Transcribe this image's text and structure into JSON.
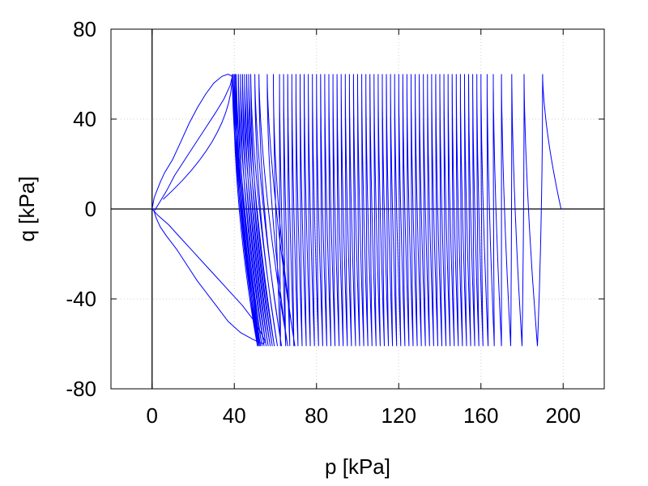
{
  "chart_data": {
    "type": "line",
    "title": "",
    "xlabel": "p [kPa]",
    "ylabel": "q [kPa]",
    "xlim": [
      -20,
      220
    ],
    "ylim": [
      -80,
      80
    ],
    "xticks": [
      0,
      40,
      80,
      120,
      160,
      200
    ],
    "yticks": [
      80,
      40,
      0,
      -40,
      -80
    ],
    "xtick_labels": [
      "0",
      "40",
      "80",
      "120",
      "160",
      "200"
    ],
    "ytick_labels": [
      "80",
      "40",
      "0",
      "-40",
      "-80"
    ],
    "grid": true,
    "zero_lines": true,
    "legend": "none",
    "series_color": "#0000ff",
    "series": [
      {
        "x": [
          0,
          1,
          4,
          6,
          10,
          14,
          18,
          22,
          26,
          30,
          34,
          37,
          39,
          38,
          35,
          31,
          26,
          21,
          16,
          11,
          7,
          3,
          1,
          2,
          4,
          7,
          12,
          17,
          22,
          27,
          32,
          37,
          43,
          49,
          54,
          55,
          53,
          49,
          44,
          38,
          32,
          26,
          20,
          14,
          8,
          3,
          1,
          0
        ],
        "y": [
          0,
          5,
          12,
          16,
          22,
          30,
          38,
          45,
          51,
          56,
          59,
          60,
          59,
          55,
          49,
          43,
          36,
          29,
          22,
          15,
          8,
          2,
          -1,
          -4,
          -8,
          -12,
          -18,
          -25,
          -32,
          -38,
          -44,
          -50,
          -55,
          -58,
          -60,
          -59,
          -55,
          -49,
          -43,
          -37,
          -31,
          -25,
          -19,
          -13,
          -7,
          -3,
          -1,
          0
        ]
      }
    ],
    "cycles": {
      "count": 72,
      "p_max": [
        39,
        39.5,
        40,
        40.5,
        41,
        42,
        43,
        44,
        45,
        46,
        47,
        48,
        50,
        52,
        56,
        59,
        62,
        64,
        66,
        68,
        70,
        72,
        74,
        76,
        78,
        80,
        82,
        84,
        86,
        88,
        90,
        92,
        94,
        96,
        98,
        100,
        102,
        104,
        106,
        108,
        110,
        112,
        114,
        116,
        118,
        120,
        122,
        124,
        126,
        128,
        130,
        132,
        134,
        136,
        138,
        140,
        142,
        144,
        146,
        148,
        150,
        152,
        154,
        156,
        158,
        160,
        163,
        166,
        170,
        175,
        181,
        190
      ],
      "q_max": 60,
      "q_min": -61,
      "p_end": 199,
      "q_end": 0
    }
  }
}
